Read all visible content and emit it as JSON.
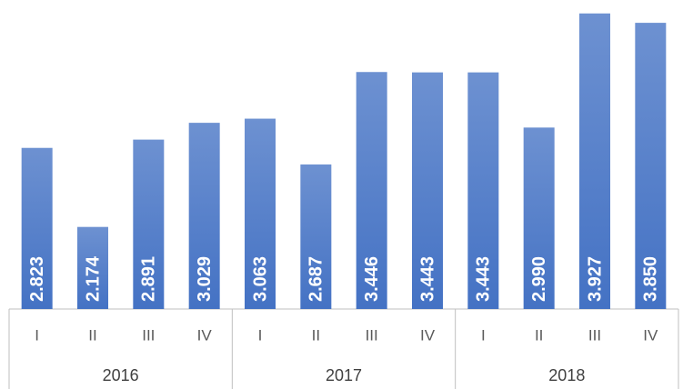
{
  "chart_data": {
    "type": "bar",
    "categories": [
      "I",
      "II",
      "III",
      "IV",
      "I",
      "II",
      "III",
      "IV",
      "I",
      "II",
      "III",
      "IV"
    ],
    "groups": [
      "2016",
      "2017",
      "2018"
    ],
    "values": [
      2.823,
      2.174,
      2.891,
      3.029,
      3.063,
      2.687,
      3.446,
      3.443,
      3.443,
      2.99,
      3.927,
      3.85
    ],
    "value_labels": [
      "2.823",
      "2.174",
      "2.891",
      "3.029",
      "3.063",
      "2.687",
      "3.446",
      "3.443",
      "3.443",
      "2.990",
      "3.927",
      "3.850"
    ],
    "color": "#4472c4",
    "ylim": [
      1.5,
      4.0
    ]
  }
}
